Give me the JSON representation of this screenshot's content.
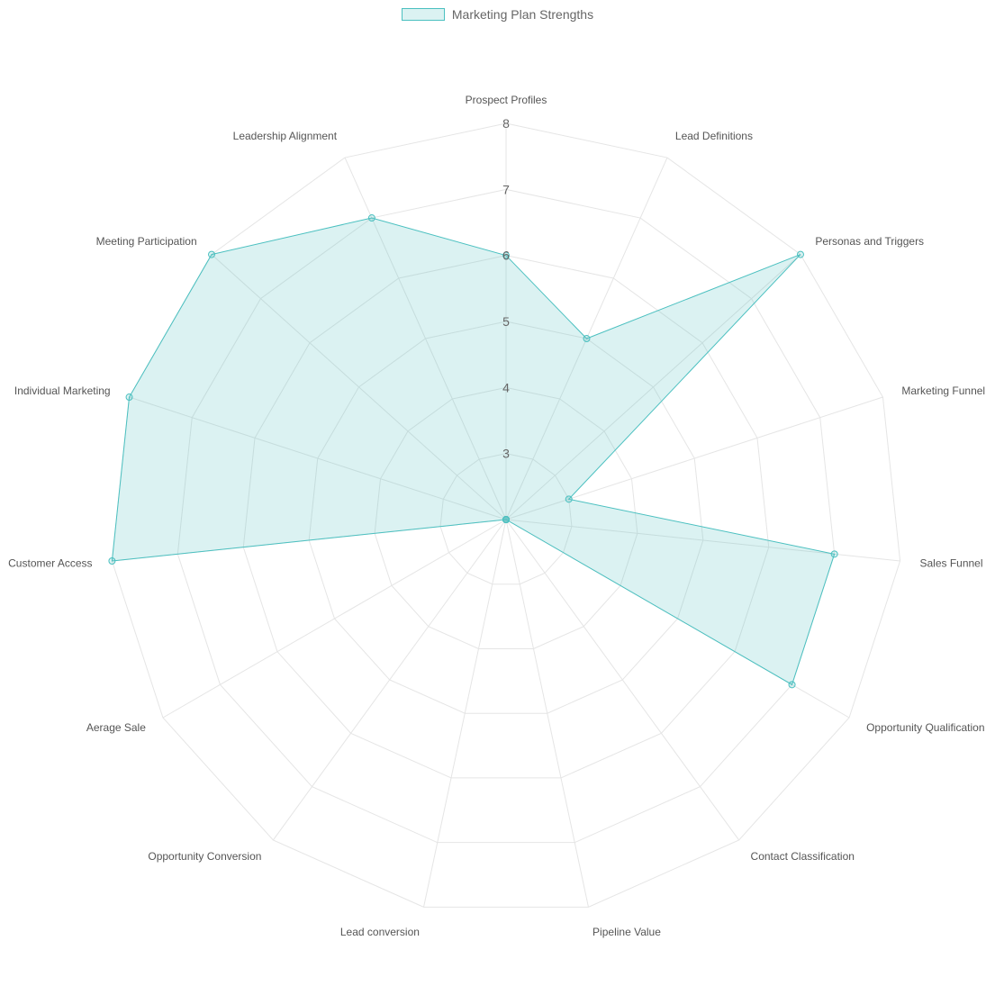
{
  "chart_data": {
    "type": "radar",
    "labels": [
      "Prospect Profiles",
      "Lead Definitions",
      "Personas and Triggers",
      "Marketing Funnel",
      "Sales Funnel",
      "Opportunity Qualification",
      "Contact Classification",
      "Pipeline Value",
      "Lead conversion",
      "Opportunity Conversion",
      "Aerage Sale",
      "Customer Access",
      "Individual Marketing",
      "Meeting Participation",
      "Leadership Alignment"
    ],
    "series": [
      {
        "name": "Marketing Plan Strengths",
        "values": [
          6,
          5,
          8,
          3,
          7,
          7,
          2,
          2,
          2,
          2,
          2,
          8,
          8,
          8,
          7
        ],
        "color": "#4bc0c0"
      }
    ],
    "rlim": [
      2,
      8
    ],
    "ticks": [
      3,
      4,
      5,
      6,
      7,
      8
    ],
    "grid": true,
    "legend_position": "top"
  }
}
